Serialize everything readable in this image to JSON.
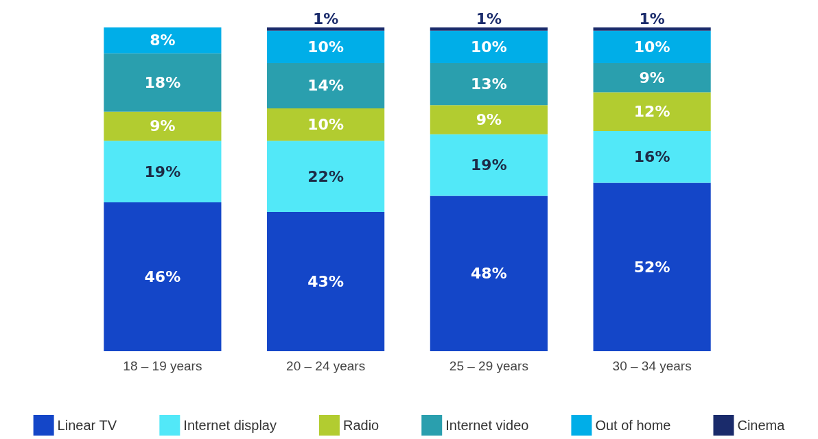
{
  "chart_data": {
    "type": "bar",
    "stacked": true,
    "categories": [
      "18 – 19 years",
      "20 – 24 years",
      "25 – 29 years",
      "30 – 34 years"
    ],
    "series": [
      {
        "name": "Linear TV",
        "color": "#1446c8",
        "values": [
          46,
          43,
          48,
          52
        ],
        "value_labels": [
          "46%",
          "43%",
          "48%",
          "52%"
        ]
      },
      {
        "name": "Internet display",
        "color": "#52e8f8",
        "values": [
          19,
          22,
          19,
          16
        ],
        "value_labels": [
          "19%",
          "22%",
          "19%",
          "16%"
        ]
      },
      {
        "name": "Radio",
        "color": "#b2cc30",
        "values": [
          9,
          10,
          9,
          12
        ],
        "value_labels": [
          "9%",
          "10%",
          "9%",
          "12%"
        ]
      },
      {
        "name": "Internet video",
        "color": "#2a9fae",
        "values": [
          18,
          14,
          13,
          9
        ],
        "value_labels": [
          "18%",
          "14%",
          "13%",
          "9%"
        ]
      },
      {
        "name": "Out of home",
        "color": "#00aee8",
        "values": [
          8,
          10,
          10,
          10
        ],
        "value_labels": [
          "8%",
          "10%",
          "10%",
          "10%"
        ]
      },
      {
        "name": "Cinema",
        "color": "#1a2b6b",
        "values": [
          null,
          1,
          1,
          1
        ],
        "value_labels": [
          null,
          "1%",
          "1%",
          "1%"
        ]
      }
    ],
    "legend": "bottom"
  }
}
